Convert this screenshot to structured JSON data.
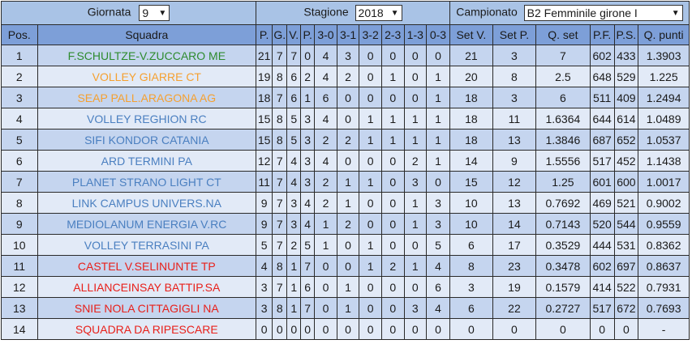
{
  "filters": {
    "giornata_label": "Giornata",
    "giornata_value": "9",
    "stagione_label": "Stagione",
    "stagione_value": "2018",
    "campionato_label": "Campionato",
    "campionato_value": "B2 Femminile girone I"
  },
  "headers": [
    "Pos.",
    "Squadra",
    "P.",
    "G.",
    "V.",
    "P.",
    "3-0",
    "3-1",
    "3-2",
    "2-3",
    "1-3",
    "0-3",
    "Set V.",
    "Set P.",
    "Q. set",
    "P.F.",
    "P.S.",
    "Q. punti"
  ],
  "colors": {
    "green": "#2e8b2e",
    "orange": "#f5a030",
    "blue": "#4a7fc0",
    "red": "#e8201a"
  },
  "rows": [
    {
      "pos": "1",
      "team": "F.SCHULTZE-V.ZUCCARO ME",
      "color": "#2e8b2e",
      "p": "21",
      "g": "7",
      "v": "7",
      "pp": "0",
      "s30": "4",
      "s31": "3",
      "s32": "0",
      "s23": "0",
      "s13": "0",
      "s03": "0",
      "setv": "21",
      "setp": "3",
      "qset": "7",
      "pf": "602",
      "ps": "433",
      "qpunti": "1.3903"
    },
    {
      "pos": "2",
      "team": "VOLLEY GIARRE CT",
      "color": "#f5a030",
      "p": "19",
      "g": "8",
      "v": "6",
      "pp": "2",
      "s30": "4",
      "s31": "2",
      "s32": "0",
      "s23": "1",
      "s13": "0",
      "s03": "1",
      "setv": "20",
      "setp": "8",
      "qset": "2.5",
      "pf": "648",
      "ps": "529",
      "qpunti": "1.225"
    },
    {
      "pos": "3",
      "team": "SEAP PALL.ARAGONA AG",
      "color": "#f5a030",
      "p": "18",
      "g": "7",
      "v": "6",
      "pp": "1",
      "s30": "6",
      "s31": "0",
      "s32": "0",
      "s23": "0",
      "s13": "0",
      "s03": "1",
      "setv": "18",
      "setp": "3",
      "qset": "6",
      "pf": "511",
      "ps": "409",
      "qpunti": "1.2494"
    },
    {
      "pos": "4",
      "team": "VOLLEY REGHION RC",
      "color": "#4a7fc0",
      "p": "15",
      "g": "8",
      "v": "5",
      "pp": "3",
      "s30": "4",
      "s31": "0",
      "s32": "1",
      "s23": "1",
      "s13": "1",
      "s03": "1",
      "setv": "18",
      "setp": "11",
      "qset": "1.6364",
      "pf": "644",
      "ps": "614",
      "qpunti": "1.0489"
    },
    {
      "pos": "5",
      "team": "SIFI KONDOR CATANIA",
      "color": "#4a7fc0",
      "p": "15",
      "g": "8",
      "v": "5",
      "pp": "3",
      "s30": "2",
      "s31": "2",
      "s32": "1",
      "s23": "1",
      "s13": "1",
      "s03": "1",
      "setv": "18",
      "setp": "13",
      "qset": "1.3846",
      "pf": "687",
      "ps": "652",
      "qpunti": "1.0537"
    },
    {
      "pos": "6",
      "team": "ARD TERMINI PA",
      "color": "#4a7fc0",
      "p": "12",
      "g": "7",
      "v": "4",
      "pp": "3",
      "s30": "4",
      "s31": "0",
      "s32": "0",
      "s23": "0",
      "s13": "2",
      "s03": "1",
      "setv": "14",
      "setp": "9",
      "qset": "1.5556",
      "pf": "517",
      "ps": "452",
      "qpunti": "1.1438"
    },
    {
      "pos": "7",
      "team": "PLANET STRANO LIGHT CT",
      "color": "#4a7fc0",
      "p": "11",
      "g": "7",
      "v": "4",
      "pp": "3",
      "s30": "2",
      "s31": "1",
      "s32": "1",
      "s23": "0",
      "s13": "3",
      "s03": "0",
      "setv": "15",
      "setp": "12",
      "qset": "1.25",
      "pf": "601",
      "ps": "600",
      "qpunti": "1.0017"
    },
    {
      "pos": "8",
      "team": "LINK CAMPUS UNIVERS.NA",
      "color": "#4a7fc0",
      "p": "9",
      "g": "7",
      "v": "3",
      "pp": "4",
      "s30": "2",
      "s31": "1",
      "s32": "0",
      "s23": "0",
      "s13": "1",
      "s03": "3",
      "setv": "10",
      "setp": "13",
      "qset": "0.7692",
      "pf": "469",
      "ps": "521",
      "qpunti": "0.9002"
    },
    {
      "pos": "9",
      "team": "MEDIOLANUM ENERGIA V.RC",
      "color": "#4a7fc0",
      "p": "9",
      "g": "7",
      "v": "3",
      "pp": "4",
      "s30": "1",
      "s31": "2",
      "s32": "0",
      "s23": "0",
      "s13": "1",
      "s03": "3",
      "setv": "10",
      "setp": "14",
      "qset": "0.7143",
      "pf": "520",
      "ps": "544",
      "qpunti": "0.9559"
    },
    {
      "pos": "10",
      "team": "VOLLEY TERRASINI PA",
      "color": "#4a7fc0",
      "p": "5",
      "g": "7",
      "v": "2",
      "pp": "5",
      "s30": "1",
      "s31": "0",
      "s32": "1",
      "s23": "0",
      "s13": "0",
      "s03": "5",
      "setv": "6",
      "setp": "17",
      "qset": "0.3529",
      "pf": "444",
      "ps": "531",
      "qpunti": "0.8362"
    },
    {
      "pos": "11",
      "team": "CASTEL V.SELINUNTE TP",
      "color": "#e8201a",
      "p": "4",
      "g": "8",
      "v": "1",
      "pp": "7",
      "s30": "0",
      "s31": "0",
      "s32": "1",
      "s23": "2",
      "s13": "1",
      "s03": "4",
      "setv": "8",
      "setp": "23",
      "qset": "0.3478",
      "pf": "602",
      "ps": "697",
      "qpunti": "0.8637"
    },
    {
      "pos": "12",
      "team": "ALLIANCEINSAY BATTIP.SA",
      "color": "#e8201a",
      "p": "3",
      "g": "7",
      "v": "1",
      "pp": "6",
      "s30": "0",
      "s31": "1",
      "s32": "0",
      "s23": "0",
      "s13": "0",
      "s03": "6",
      "setv": "3",
      "setp": "19",
      "qset": "0.1579",
      "pf": "414",
      "ps": "522",
      "qpunti": "0.7931"
    },
    {
      "pos": "13",
      "team": "SNIE NOLA CITTAGIGLI NA",
      "color": "#e8201a",
      "p": "3",
      "g": "8",
      "v": "1",
      "pp": "7",
      "s30": "0",
      "s31": "1",
      "s32": "0",
      "s23": "0",
      "s13": "3",
      "s03": "4",
      "setv": "6",
      "setp": "22",
      "qset": "0.2727",
      "pf": "517",
      "ps": "672",
      "qpunti": "0.7693"
    },
    {
      "pos": "14",
      "team": "SQUADRA DA RIPESCARE",
      "color": "#e8201a",
      "p": "0",
      "g": "0",
      "v": "0",
      "pp": "0",
      "s30": "0",
      "s31": "0",
      "s32": "0",
      "s23": "0",
      "s13": "0",
      "s03": "0",
      "setv": "0",
      "setp": "0",
      "qset": "0",
      "pf": "0",
      "ps": "0",
      "qpunti": "-"
    }
  ]
}
